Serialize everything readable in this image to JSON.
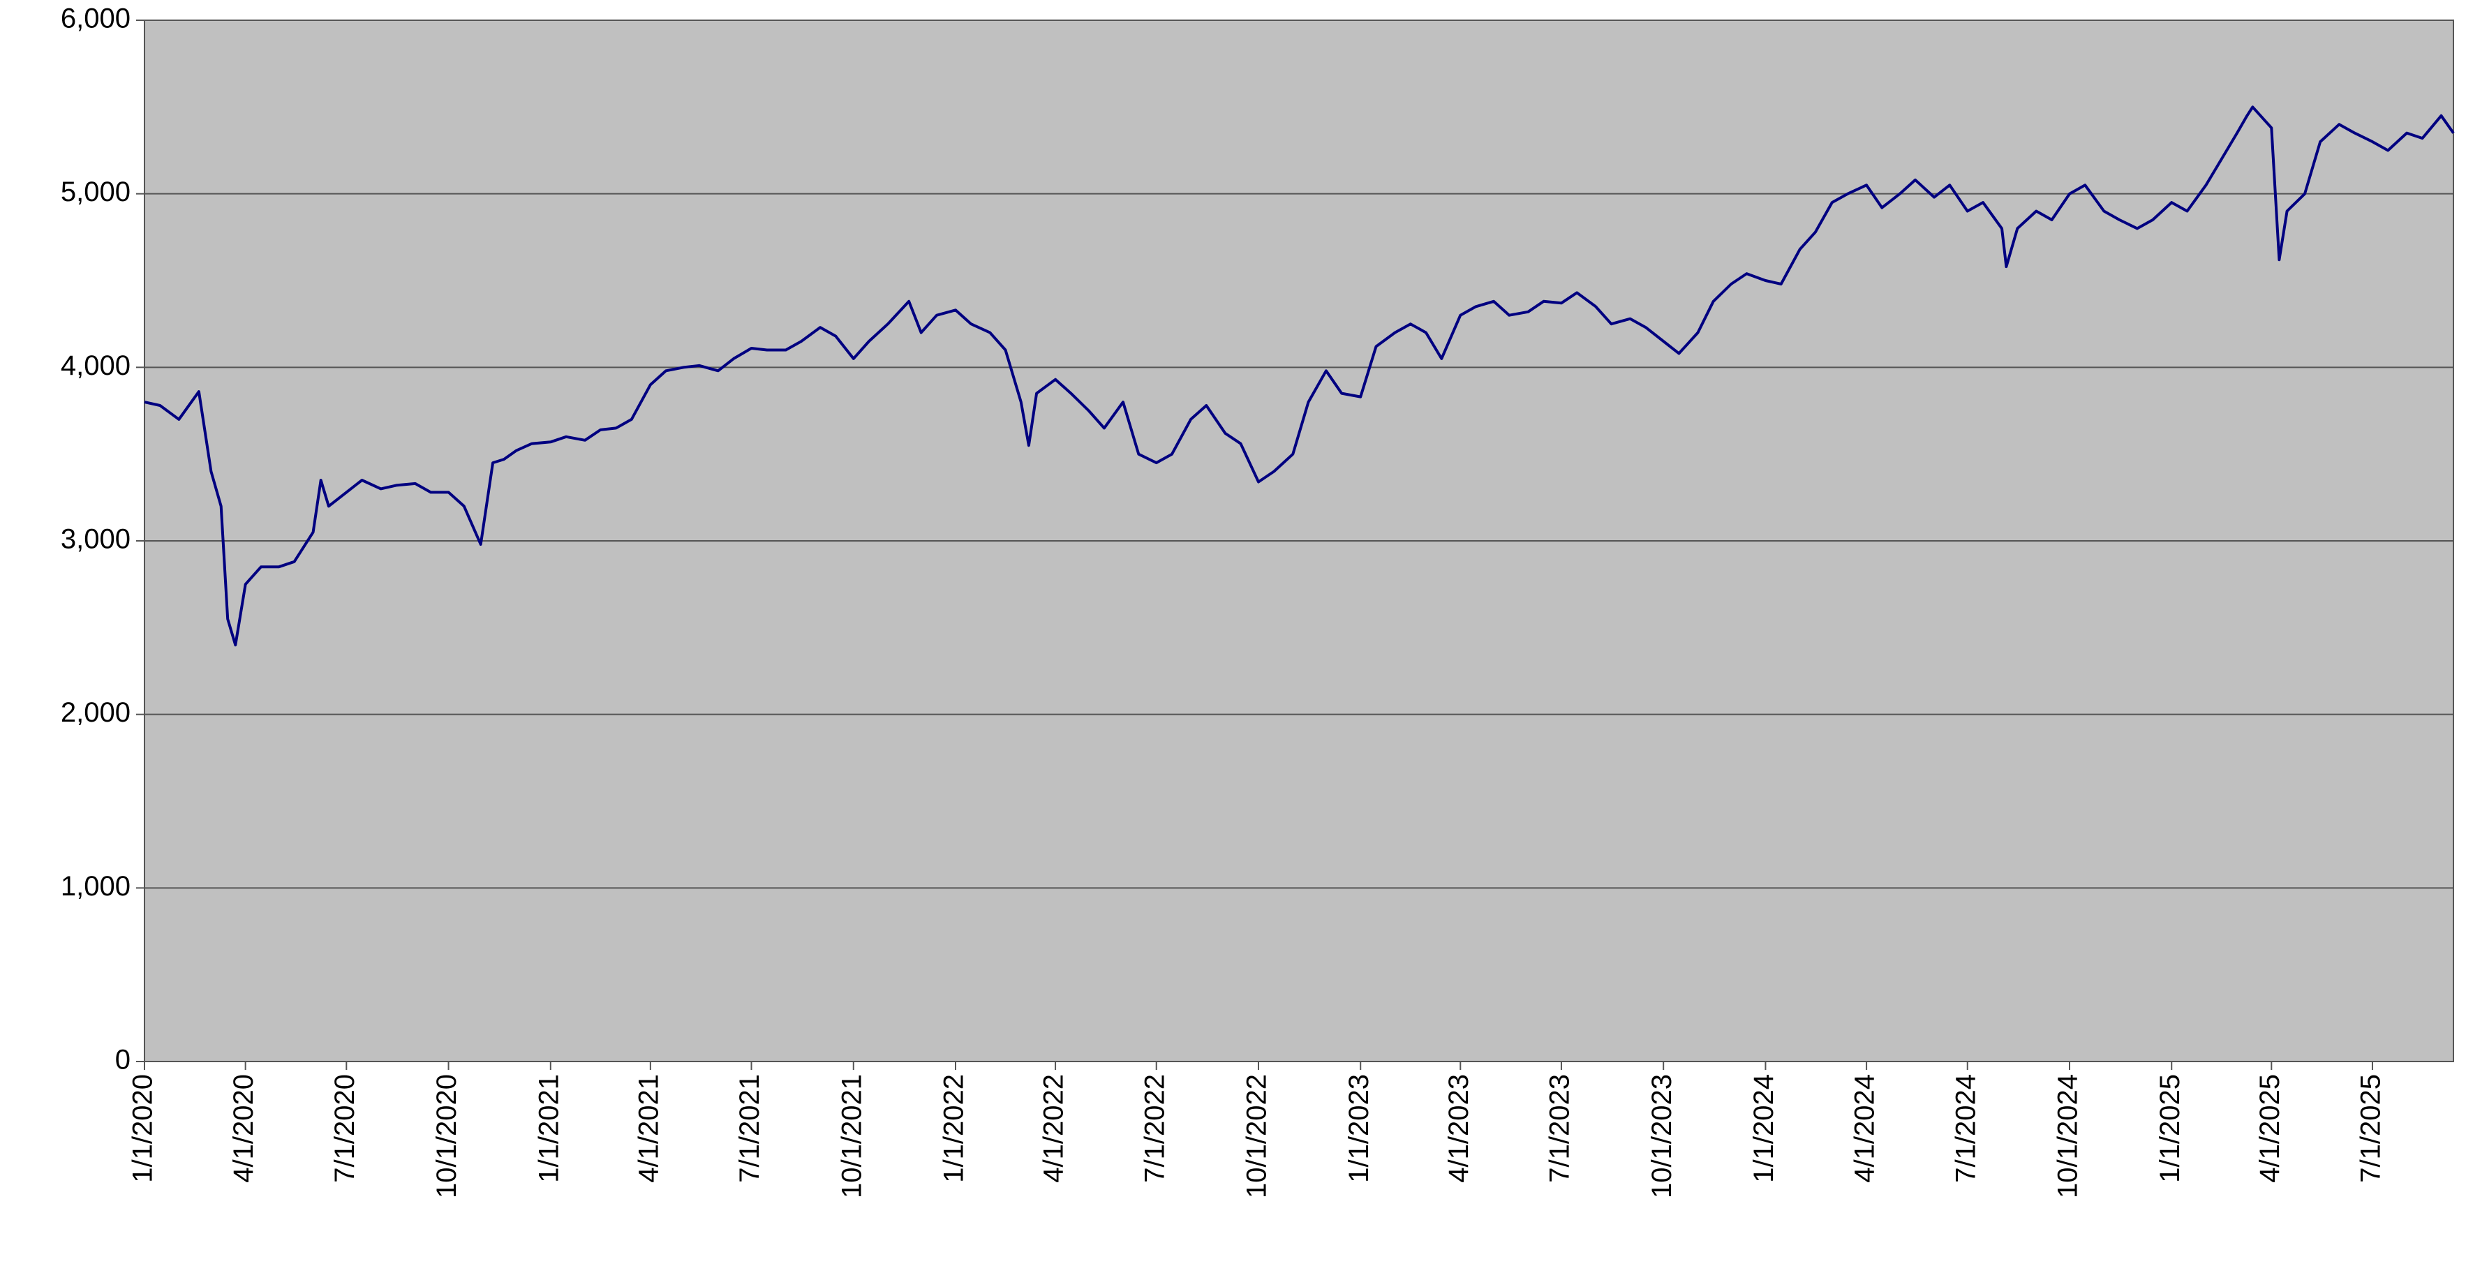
{
  "chart_data": {
    "type": "line",
    "color": "#000080",
    "grid": true,
    "x": [
      "1/1/2020",
      "1/15/2020",
      "2/1/2020",
      "2/19/2020",
      "3/1/2020",
      "3/10/2020",
      "3/16/2020",
      "3/23/2020",
      "4/1/2020",
      "4/15/2020",
      "5/1/2020",
      "5/15/2020",
      "6/1/2020",
      "6/8/2020",
      "6/15/2020",
      "7/1/2020",
      "7/15/2020",
      "8/1/2020",
      "8/15/2020",
      "9/1/2020",
      "9/15/2020",
      "10/1/2020",
      "10/15/2020",
      "10/30/2020",
      "11/10/2020",
      "11/20/2020",
      "12/1/2020",
      "12/15/2020",
      "1/1/2021",
      "1/15/2021",
      "2/1/2021",
      "2/15/2021",
      "3/1/2021",
      "3/15/2021",
      "4/1/2021",
      "4/15/2021",
      "5/1/2021",
      "5/15/2021",
      "6/1/2021",
      "6/15/2021",
      "7/1/2021",
      "7/15/2021",
      "8/1/2021",
      "8/15/2021",
      "9/1/2021",
      "9/15/2021",
      "10/1/2021",
      "10/15/2021",
      "11/1/2021",
      "11/20/2021",
      "12/1/2021",
      "12/15/2021",
      "1/1/2022",
      "1/15/2022",
      "2/1/2022",
      "2/15/2022",
      "3/1/2022",
      "3/8/2022",
      "3/15/2022",
      "4/1/2022",
      "4/15/2022",
      "5/1/2022",
      "5/15/2022",
      "6/1/2022",
      "6/15/2022",
      "7/1/2022",
      "7/15/2022",
      "8/1/2022",
      "8/15/2022",
      "9/1/2022",
      "9/15/2022",
      "10/1/2022",
      "10/15/2022",
      "11/1/2022",
      "11/15/2022",
      "12/1/2022",
      "12/15/2022",
      "1/1/2023",
      "1/15/2023",
      "2/1/2023",
      "2/15/2023",
      "3/1/2023",
      "3/15/2023",
      "4/1/2023",
      "4/15/2023",
      "5/1/2023",
      "5/15/2023",
      "6/1/2023",
      "6/15/2023",
      "7/1/2023",
      "7/15/2023",
      "8/1/2023",
      "8/15/2023",
      "9/1/2023",
      "9/15/2023",
      "10/1/2023",
      "10/15/2023",
      "11/1/2023",
      "11/15/2023",
      "12/1/2023",
      "12/15/2023",
      "1/1/2024",
      "1/15/2024",
      "2/1/2024",
      "2/15/2024",
      "3/1/2024",
      "3/15/2024",
      "4/1/2024",
      "4/15/2024",
      "5/1/2024",
      "5/15/2024",
      "6/1/2024",
      "6/15/2024",
      "7/1/2024",
      "7/15/2024",
      "8/1/2024",
      "8/5/2024",
      "8/15/2024",
      "9/1/2024",
      "9/15/2024",
      "10/1/2024",
      "10/15/2024",
      "11/1/2024",
      "11/15/2024",
      "12/1/2024",
      "12/15/2024",
      "1/1/2025",
      "1/15/2025",
      "2/1/2025",
      "2/15/2025",
      "3/1/2025",
      "3/10/2025",
      "3/15/2025",
      "4/1/2025",
      "4/8/2025",
      "4/15/2025",
      "5/1/2025",
      "5/15/2025",
      "6/1/2025",
      "6/15/2025",
      "7/1/2025",
      "7/15/2025",
      "8/1/2025",
      "8/15/2025",
      "9/1/2025",
      "9/12/2025"
    ],
    "values": [
      3800,
      3780,
      3700,
      3860,
      3400,
      3200,
      2550,
      2400,
      2750,
      2850,
      2850,
      2880,
      3050,
      3350,
      3200,
      3280,
      3350,
      3300,
      3320,
      3330,
      3280,
      3280,
      3200,
      2980,
      3450,
      3470,
      3520,
      3560,
      3570,
      3600,
      3580,
      3640,
      3650,
      3700,
      3900,
      3980,
      4000,
      4010,
      3980,
      4050,
      4110,
      4100,
      4100,
      4150,
      4230,
      4180,
      4050,
      4150,
      4250,
      4380,
      4200,
      4300,
      4330,
      4250,
      4200,
      4100,
      3800,
      3550,
      3850,
      3930,
      3850,
      3750,
      3650,
      3800,
      3500,
      3450,
      3500,
      3700,
      3780,
      3620,
      3560,
      3340,
      3400,
      3500,
      3800,
      3980,
      3850,
      3830,
      4120,
      4200,
      4250,
      4200,
      4050,
      4300,
      4350,
      4380,
      4300,
      4320,
      4380,
      4370,
      4430,
      4350,
      4250,
      4280,
      4230,
      4150,
      4080,
      4200,
      4380,
      4480,
      4540,
      4500,
      4480,
      4680,
      4780,
      4950,
      5000,
      5050,
      4920,
      5000,
      5080,
      4980,
      5050,
      4900,
      4950,
      4800,
      4580,
      4800,
      4900,
      4850,
      5000,
      5050,
      4900,
      4850,
      4800,
      4850,
      4950,
      4900,
      5050,
      5200,
      5350,
      5450,
      5500,
      5380,
      4620,
      4900,
      5000,
      5300,
      5400,
      5350,
      5300,
      5250,
      5350,
      5320,
      5450,
      5350
    ],
    "xlim": [
      "1/1/2020",
      "9/12/2025"
    ],
    "xticks": [
      "1/1/2020",
      "4/1/2020",
      "7/1/2020",
      "10/1/2020",
      "1/1/2021",
      "4/1/2021",
      "7/1/2021",
      "10/1/2021",
      "1/1/2022",
      "4/1/2022",
      "7/1/2022",
      "10/1/2022",
      "1/1/2023",
      "4/1/2023",
      "7/1/2023",
      "10/1/2023",
      "1/1/2024",
      "4/1/2024",
      "7/1/2024",
      "10/1/2024",
      "1/1/2025",
      "4/1/2025",
      "7/1/2025"
    ],
    "ylim": [
      0,
      6000
    ],
    "yticks": [
      0,
      {
        "value": 1000,
        "label": "1,000"
      },
      {
        "value": 2000,
        "label": "2,000"
      },
      {
        "value": 3000,
        "label": "3,000"
      },
      {
        "value": 4000,
        "label": "4,000"
      },
      {
        "value": 5000,
        "label": "5,000"
      },
      {
        "value": 6000,
        "label": "6,000"
      }
    ]
  }
}
